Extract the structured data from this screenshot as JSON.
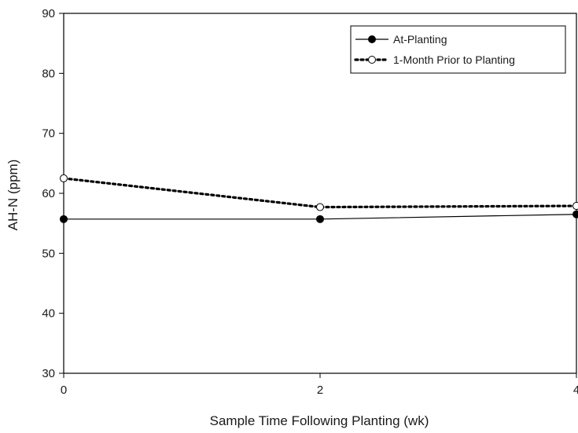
{
  "chart_data": {
    "type": "line",
    "title": "",
    "xlabel": "Sample Time Following Planting (wk)",
    "ylabel": "AH-N (ppm)",
    "x": [
      0,
      2,
      4
    ],
    "x_ticks": [
      0,
      2,
      4
    ],
    "y_ticks": [
      30,
      40,
      50,
      60,
      70,
      80,
      90
    ],
    "xlim": [
      0,
      4
    ],
    "ylim": [
      30,
      90
    ],
    "grid": false,
    "legend_position": "top-right",
    "series": [
      {
        "name": "At-Planting",
        "values": [
          55.7,
          55.7,
          56.5
        ],
        "line_style": "solid",
        "marker": "filled-circle",
        "color": "#000000"
      },
      {
        "name": "1-Month Prior to Planting",
        "values": [
          62.5,
          57.7,
          57.9
        ],
        "line_style": "dotted",
        "marker": "open-circle",
        "color": "#000000"
      }
    ]
  }
}
